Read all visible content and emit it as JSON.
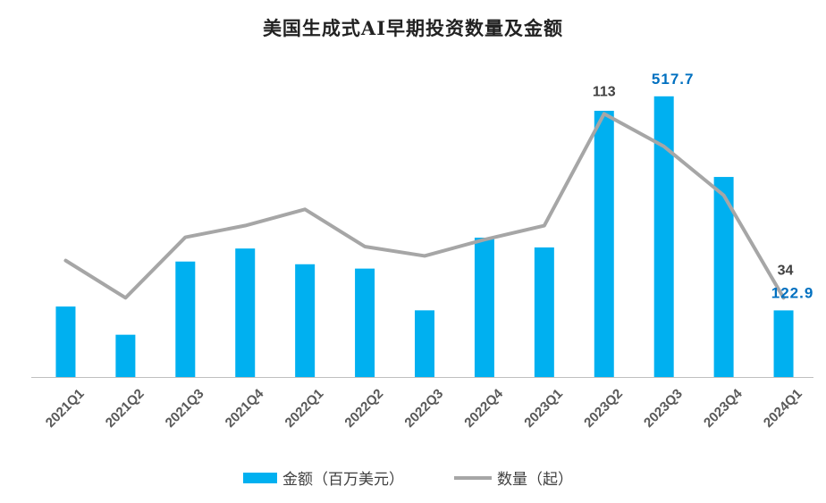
{
  "chart_data": {
    "type": "bar+line",
    "title": "美国生成式AI早期投资数量及金额",
    "categories": [
      "2021Q1",
      "2021Q2",
      "2021Q3",
      "2021Q4",
      "2022Q1",
      "2022Q2",
      "2022Q3",
      "2022Q4",
      "2023Q1",
      "2023Q2",
      "2023Q3",
      "2023Q4",
      "2024Q1"
    ],
    "series": [
      {
        "name": "金额（百万美元）",
        "kind": "bar",
        "axis": "primary",
        "values": [
          130,
          78,
          213,
          237,
          208,
          200,
          123,
          257,
          239,
          491,
          517.7,
          369,
          122.9
        ],
        "labels": [
          "",
          "",
          "",
          "",
          "",
          "",
          "",
          "",
          "",
          "",
          "517.7",
          "",
          "122.9"
        ]
      },
      {
        "name": "数量（起）",
        "kind": "line",
        "axis": "secondary",
        "values": [
          50,
          34,
          60,
          65,
          72,
          56,
          52,
          59,
          65,
          113,
          99,
          78,
          34
        ],
        "labels": [
          "",
          "",
          "",
          "",
          "",
          "",
          "",
          "",
          "",
          "113",
          "",
          "",
          "34"
        ]
      }
    ],
    "ylim": [
      0,
      580
    ],
    "y2lim": [
      0,
      135
    ],
    "grid": false,
    "legend_position": "bottom",
    "colors": {
      "bar": "#00B0F0",
      "line": "#A6A6A6",
      "bar_label": "#0070C0",
      "line_label": "#404040",
      "axis": "#BFBFBF",
      "tick_text": "#595959"
    }
  }
}
